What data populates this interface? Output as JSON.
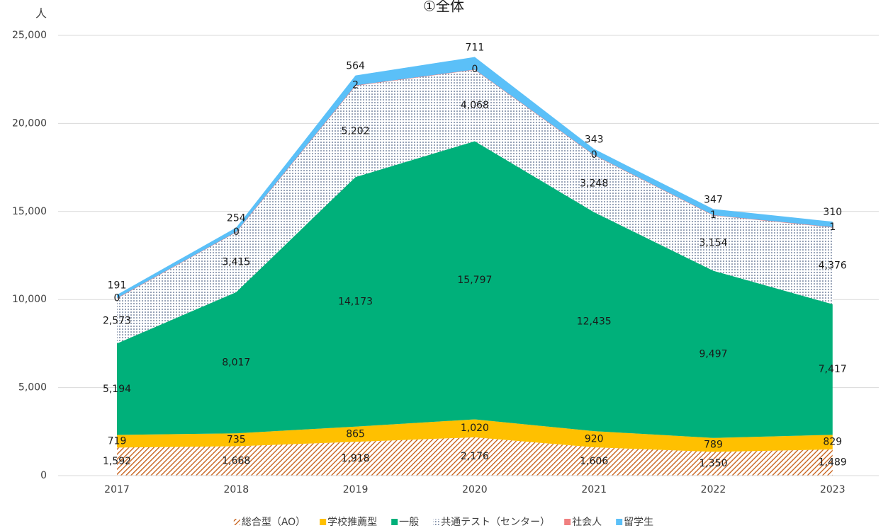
{
  "chart_data": {
    "type": "stacked_area",
    "title": "①全体",
    "y_axis_label": "人",
    "categories": [
      "2017",
      "2018",
      "2019",
      "2020",
      "2021",
      "2022",
      "2023"
    ],
    "ylim": [
      0,
      25000
    ],
    "yticks": [
      0,
      {
        "value": 5000,
        "label": "5,000"
      },
      {
        "value": 10000,
        "label": "10,000"
      },
      {
        "value": 15000,
        "label": "15,000"
      },
      {
        "value": 20000,
        "label": "20,000"
      },
      {
        "value": 25000,
        "label": "25,000"
      }
    ],
    "grid": true,
    "legend": "bottom",
    "series": [
      {
        "name": "総合型（AO）",
        "color": "#c55a11",
        "pattern": "hatch",
        "values": [
          1592,
          1668,
          1918,
          2176,
          1606,
          1350,
          1489
        ],
        "value_labels": [
          "1,592",
          "1,668",
          "1,918",
          "2,176",
          "1,606",
          "1,350",
          "1,489"
        ]
      },
      {
        "name": "学校推薦型",
        "color": "#ffc000",
        "values": [
          719,
          735,
          865,
          1020,
          920,
          789,
          829
        ],
        "value_labels": [
          "719",
          "735",
          "865",
          "1,020",
          "920",
          "789",
          "829"
        ]
      },
      {
        "name": "一般",
        "color": "#00b07a",
        "values": [
          5194,
          8017,
          14173,
          15797,
          12435,
          9497,
          7417
        ],
        "value_labels": [
          "5,194",
          "8,017",
          "14,173",
          "15,797",
          "12,435",
          "9,497",
          "7,417"
        ]
      },
      {
        "name": "共通テスト（センター）",
        "color": "#1f3864",
        "pattern": "dots",
        "values": [
          2573,
          3415,
          5202,
          4068,
          3248,
          3154,
          4376
        ],
        "value_labels": [
          "2,573",
          "3,415",
          "5,202",
          "4,068",
          "3,248",
          "3,154",
          "4,376"
        ]
      },
      {
        "name": "社会人",
        "color": "#f08080",
        "values": [
          0,
          0,
          2,
          0,
          0,
          1,
          1
        ]
      },
      {
        "name": "留学生",
        "color": "#5bc0f8",
        "values": [
          191,
          254,
          564,
          711,
          343,
          347,
          310
        ]
      }
    ]
  }
}
